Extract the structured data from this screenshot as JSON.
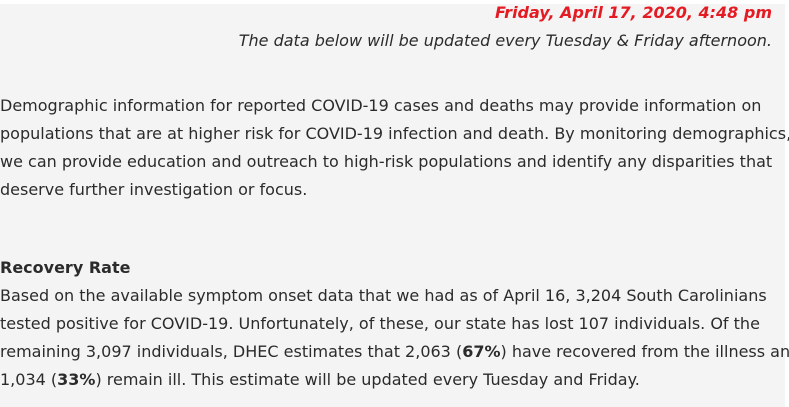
{
  "header": {
    "date": "Friday, April 17, 2020, 4:48 pm",
    "update_note": "The data below will be updated every Tuesday & Friday afternoon."
  },
  "intro": {
    "lines": [
      "Demographic information for reported COVID-19 cases and deaths may provide information on",
      "populations that are at higher risk for COVID-19 infection and death. By monitoring demographics,",
      "we can provide education and outreach to high-risk populations and identify any disparities that",
      "deserve further investigation or focus."
    ]
  },
  "recovery": {
    "heading": "Recovery Rate",
    "line1": "Based on the available symptom onset data that we had as of April 16, 3,204 South Carolinians",
    "line2": "tested positive for COVID-19. Unfortunately, of these, our state has lost 107 individuals. Of the",
    "line3_pre": "remaining 3,097 individuals, DHEC estimates that 2,063 (",
    "line3_bold": "67%",
    "line3_post": ") have recovered from the illness and",
    "line4_pre": "1,034 (",
    "line4_bold": "33%",
    "line4_post": ") remain ill. This estimate will be updated every Tuesday and Friday."
  },
  "colors": {
    "accent_red": "#e41b23",
    "background": "#f4f4f4"
  }
}
